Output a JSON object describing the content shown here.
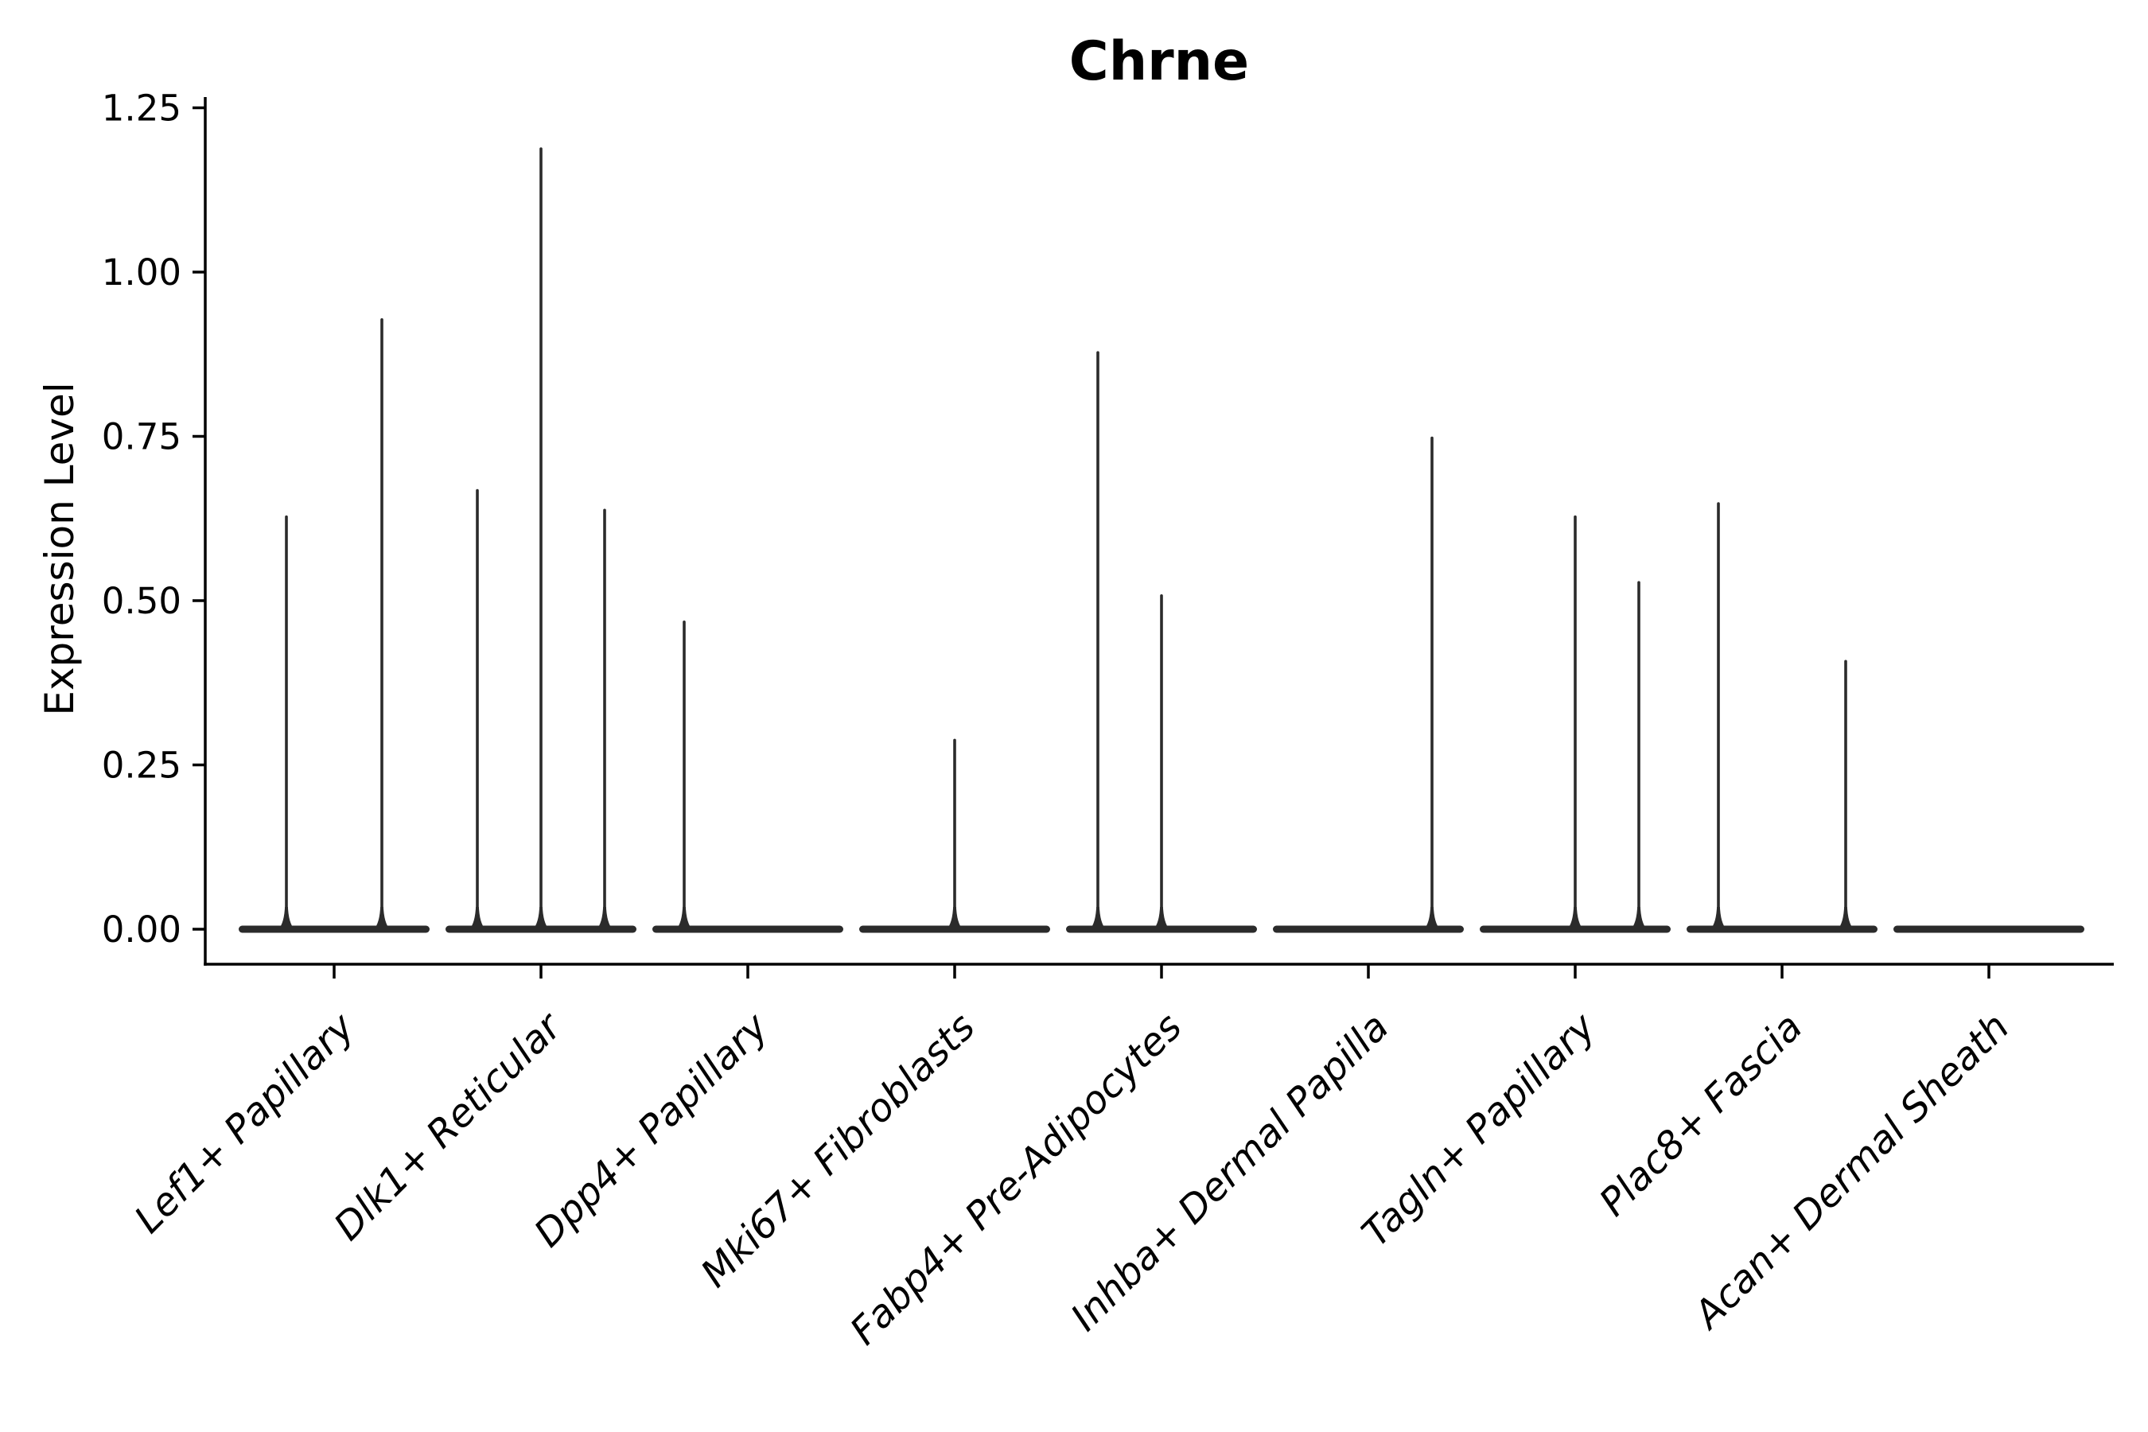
{
  "chart_data": {
    "type": "violin",
    "title": "Chrne",
    "xlabel": "",
    "ylabel": "Expression Level",
    "legend": "none",
    "grid": false,
    "background_color": "#ffffff",
    "violin_color": "#2b2b2b",
    "axis_color": "#000000",
    "ylim": [
      -0.05,
      1.27
    ],
    "y_ticks": [
      0,
      0.25,
      0.5,
      0.75,
      1.0,
      1.25
    ],
    "y_tick_labels": [
      "0.00",
      "0.25",
      "0.50",
      "0.75",
      "1.00",
      "1.25"
    ],
    "categories": [
      "Lef1+ Papillary",
      "Dlk1+ Reticular",
      "Dpp4+ Papillary",
      "Mki67+ Fibroblasts",
      "Fabp4+ Pre-Adipocytes",
      "Inhba+ Dermal Papilla",
      "Tagln+ Papillary",
      "Plac8+ Fascia",
      "Acan+ Dermal Sheath"
    ],
    "groups": [
      {
        "category": "Lef1+ Papillary",
        "violins": [
          {
            "offset": -60,
            "max_expression": 0.63
          },
          {
            "offset": 60,
            "max_expression": 0.93
          }
        ]
      },
      {
        "category": "Dlk1+ Reticular",
        "violins": [
          {
            "offset": -80,
            "max_expression": 0.67
          },
          {
            "offset": 0,
            "max_expression": 1.19
          },
          {
            "offset": 80,
            "max_expression": 0.64
          }
        ]
      },
      {
        "category": "Dpp4+ Papillary",
        "violins": [
          {
            "offset": -80,
            "max_expression": 0.47
          }
        ]
      },
      {
        "category": "Mki67+ Fibroblasts",
        "violins": [
          {
            "offset": 0,
            "max_expression": 0.29
          }
        ]
      },
      {
        "category": "Fabp4+ Pre-Adipocytes",
        "violins": [
          {
            "offset": -80,
            "max_expression": 0.88
          },
          {
            "offset": 0,
            "max_expression": 0.51
          }
        ]
      },
      {
        "category": "Inhba+ Dermal Papilla",
        "violins": [
          {
            "offset": 80,
            "max_expression": 0.75
          }
        ]
      },
      {
        "category": "Tagln+ Papillary",
        "violins": [
          {
            "offset": 0,
            "max_expression": 0.63
          },
          {
            "offset": 80,
            "max_expression": 0.53
          }
        ]
      },
      {
        "category": "Plac8+ Fascia",
        "violins": [
          {
            "offset": -80,
            "max_expression": 0.65
          },
          {
            "offset": 80,
            "max_expression": 0.41
          }
        ]
      },
      {
        "category": "Acan+ Dermal Sheath",
        "violins": []
      }
    ]
  }
}
